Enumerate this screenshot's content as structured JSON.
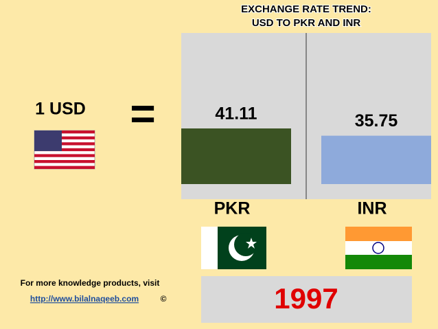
{
  "chart_data": {
    "type": "bar",
    "title": "EXCHANGE RATE TREND:",
    "subtitle": "USD TO PKR AND INR",
    "categories": [
      "PKR",
      "INR"
    ],
    "values": [
      41.11,
      35.75
    ],
    "colors": [
      "#3b5323",
      "#8eaadb"
    ]
  },
  "usd_label": "1 USD",
  "equals_sign": "=",
  "year": "1997",
  "footer": {
    "line1": "For more knowledge products, visit",
    "link": "http://www.bilalnaqeeb.com",
    "copyright": "©"
  }
}
